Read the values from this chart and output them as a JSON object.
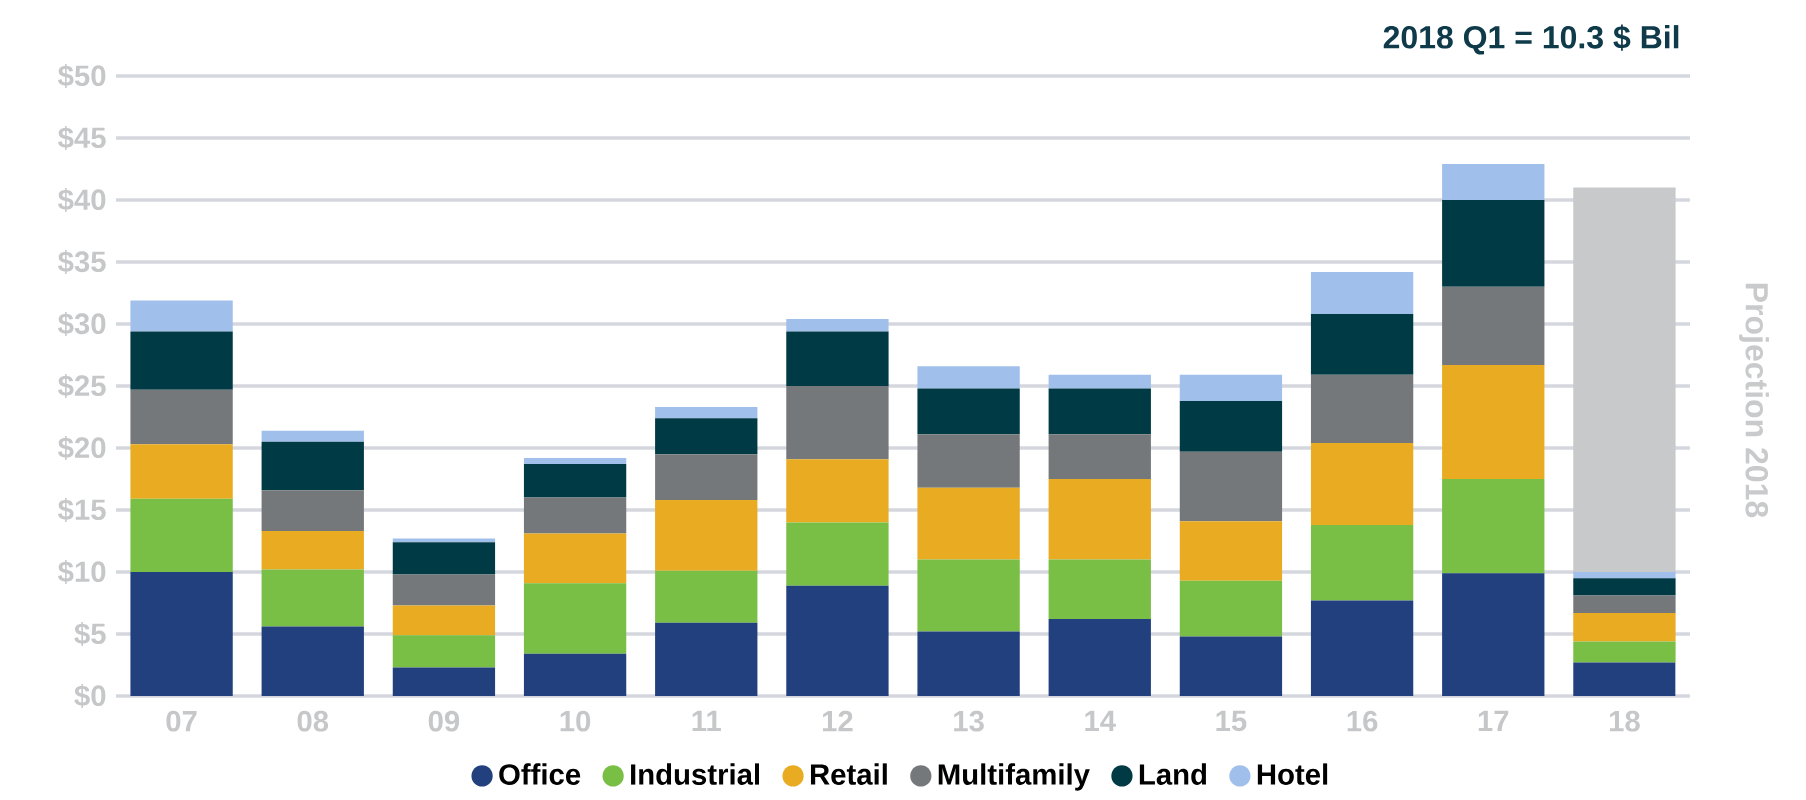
{
  "chart_data": {
    "type": "bar",
    "stacked": true,
    "categories": [
      "07",
      "08",
      "09",
      "10",
      "11",
      "12",
      "13",
      "14",
      "15",
      "16",
      "17",
      "18"
    ],
    "series": [
      {
        "name": "Office",
        "color": "#223f7e",
        "values": [
          10.0,
          5.6,
          2.3,
          3.4,
          5.9,
          8.9,
          5.2,
          6.2,
          4.8,
          7.7,
          9.9,
          2.7
        ]
      },
      {
        "name": "Industrial",
        "color": "#79be45",
        "values": [
          5.9,
          4.6,
          2.6,
          5.7,
          4.2,
          5.1,
          5.8,
          4.8,
          4.5,
          6.1,
          7.6,
          1.7
        ]
      },
      {
        "name": "Retail",
        "color": "#e8ab22",
        "values": [
          4.4,
          3.1,
          2.4,
          4.0,
          5.7,
          5.1,
          5.8,
          6.5,
          4.8,
          6.6,
          9.2,
          2.3
        ]
      },
      {
        "name": "Multifamily",
        "color": "#75787b",
        "values": [
          4.4,
          3.3,
          2.5,
          2.9,
          3.7,
          5.9,
          4.3,
          3.6,
          5.6,
          5.5,
          6.3,
          1.4
        ]
      },
      {
        "name": "Land",
        "color": "#003a45",
        "values": [
          4.7,
          3.9,
          2.6,
          2.7,
          2.9,
          4.4,
          3.7,
          3.7,
          4.1,
          4.9,
          7.0,
          1.4
        ]
      },
      {
        "name": "Hotel",
        "color": "#a0bfea",
        "values": [
          2.5,
          0.9,
          0.3,
          0.5,
          0.9,
          1.0,
          1.8,
          1.1,
          2.1,
          3.4,
          2.9,
          0.5
        ]
      },
      {
        "color": "#c8c9cb",
        "values": [
          null,
          null,
          null,
          null,
          null,
          null,
          null,
          null,
          null,
          null,
          null,
          31.0
        ]
      }
    ],
    "ylim": [
      0,
      50
    ],
    "yticks": [
      {
        "value": 0,
        "label": "$0"
      },
      {
        "value": 5,
        "label": "$5"
      },
      {
        "value": 10,
        "label": "$10"
      },
      {
        "value": 15,
        "label": "$15"
      },
      {
        "value": 20,
        "label": "$20"
      },
      {
        "value": 25,
        "label": "$25"
      },
      {
        "value": 30,
        "label": "$30"
      },
      {
        "value": 35,
        "label": "$35"
      },
      {
        "value": 40,
        "label": "$40"
      },
      {
        "value": 45,
        "label": "$45"
      },
      {
        "value": 50,
        "label": "$50"
      }
    ],
    "grid": "y",
    "legend": "bottom",
    "marker": "circle",
    "annotations": [
      "2018 Q1 = 10.3 $ Bil",
      "Projection 2018"
    ]
  }
}
